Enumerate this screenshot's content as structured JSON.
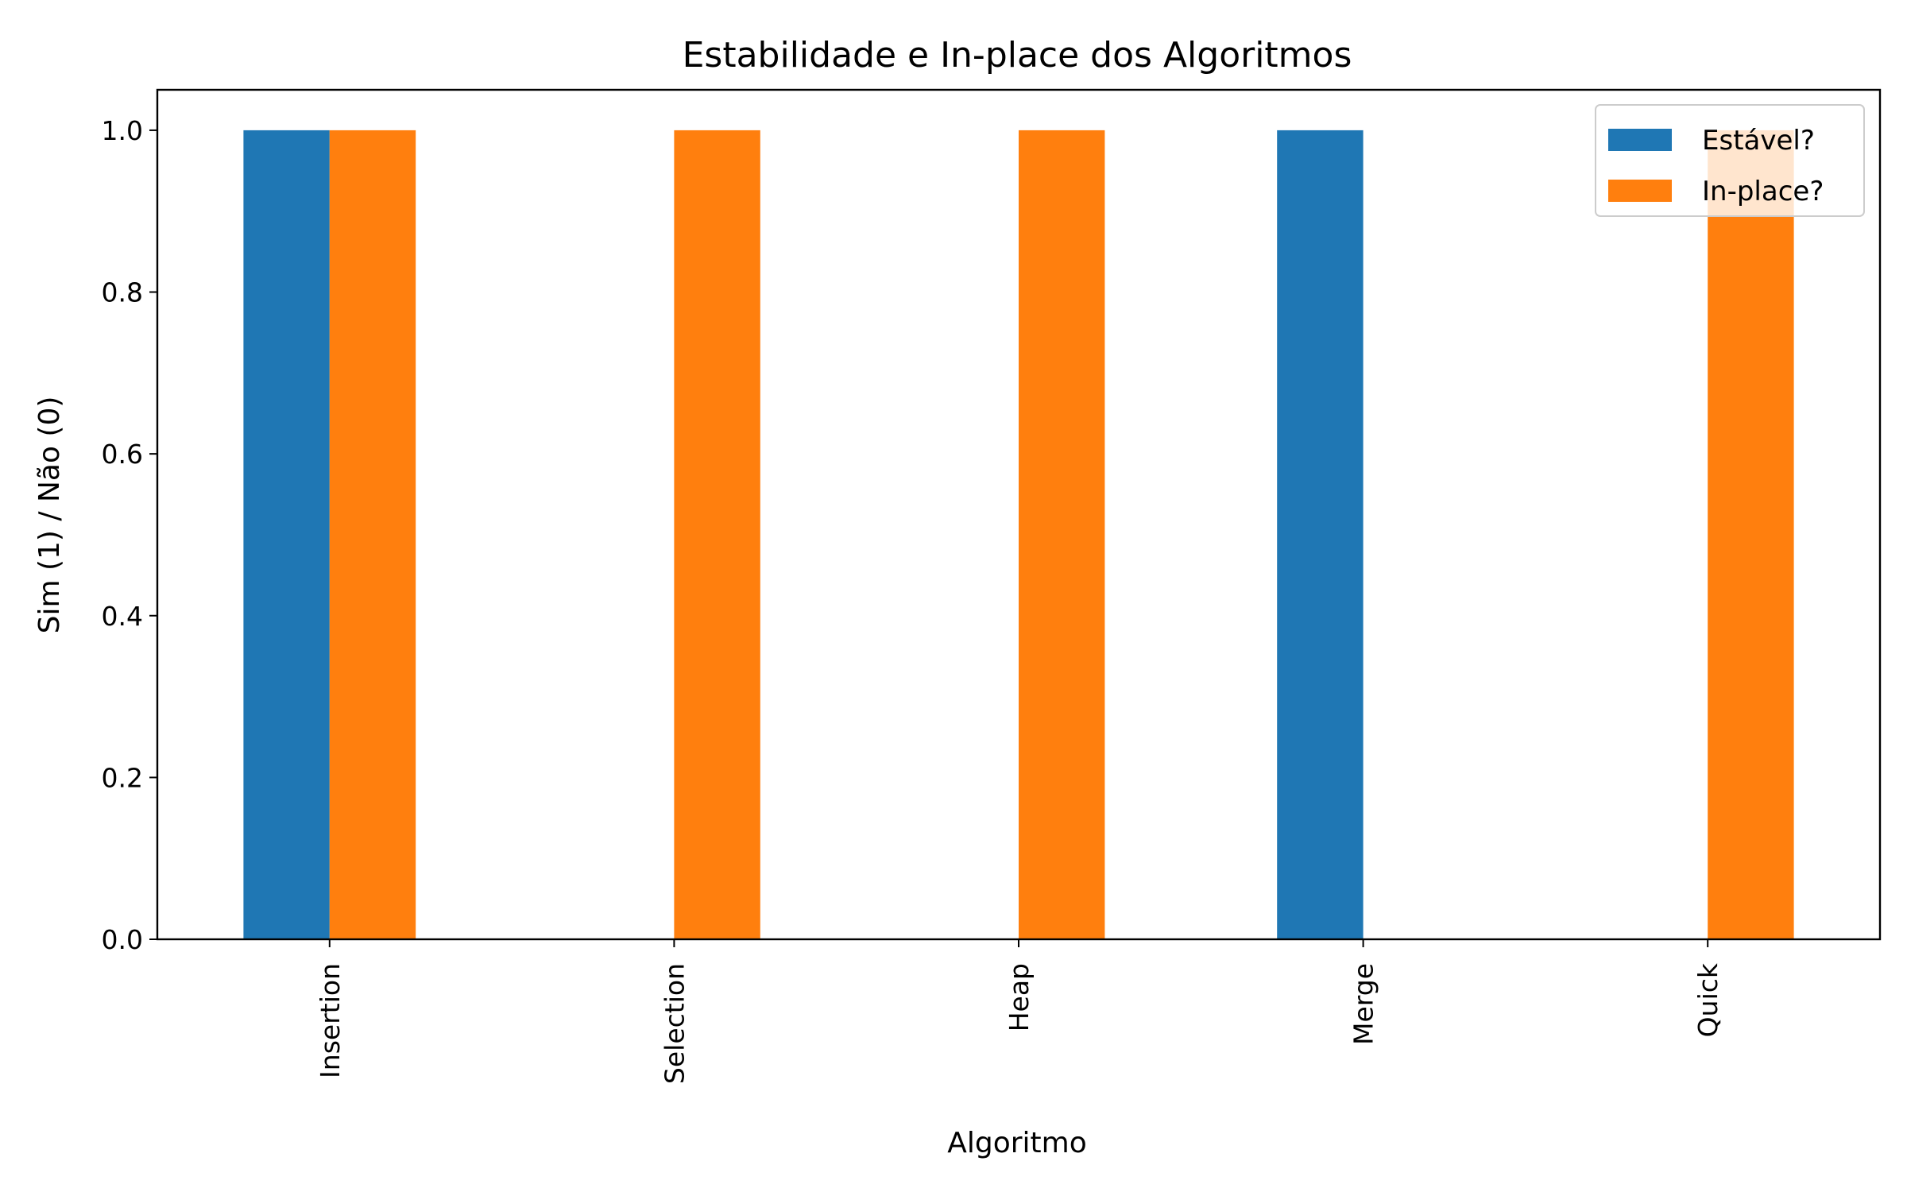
{
  "chart_data": {
    "type": "bar",
    "title": "Estabilidade e In-place dos Algoritmos",
    "xlabel": "Algoritmo",
    "ylabel": "Sim (1) / Não (0)",
    "categories": [
      "Insertion",
      "Selection",
      "Heap",
      "Merge",
      "Quick"
    ],
    "series": [
      {
        "name": "Estável?",
        "values": [
          1,
          0,
          0,
          1,
          0
        ],
        "color": "#1f77b4"
      },
      {
        "name": "In-place?",
        "values": [
          1,
          1,
          1,
          0,
          1
        ],
        "color": "#ff7f0e"
      }
    ],
    "ylim": [
      0,
      1.05
    ],
    "yticks": [
      "0.0",
      "0.2",
      "0.4",
      "0.6",
      "0.8",
      "1.0"
    ],
    "grid": false,
    "legend": "top-right"
  }
}
